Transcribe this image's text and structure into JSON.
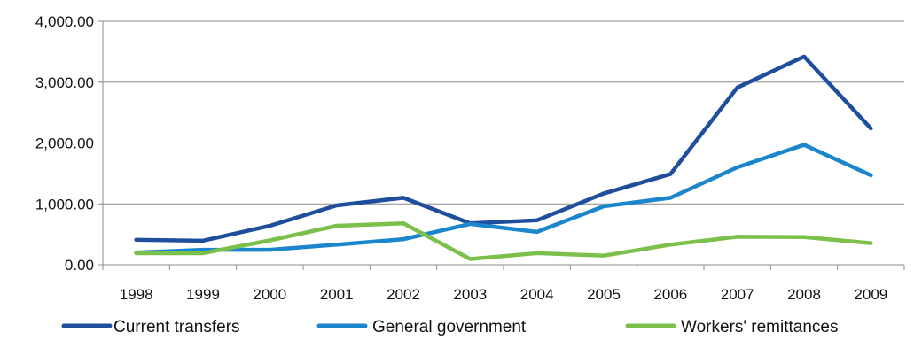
{
  "chart_data": {
    "type": "line",
    "categories": [
      "1998",
      "1999",
      "2000",
      "2001",
      "2002",
      "2003",
      "2004",
      "2005",
      "2006",
      "2007",
      "2008",
      "2009"
    ],
    "y_ticks": [
      "0.00",
      "1,000.00",
      "2,000.00",
      "3,000.00",
      "4,000.00"
    ],
    "ylim": [
      0,
      4000
    ],
    "grid": "horizontal",
    "legend_position": "bottom",
    "series": [
      {
        "name": "Current transfers",
        "color": "#1f4e9c",
        "values": [
          410,
          395,
          640,
          975,
          1100,
          680,
          730,
          1170,
          1490,
          2910,
          3420,
          2240
        ]
      },
      {
        "name": "General government",
        "color": "#1b86cc",
        "values": [
          200,
          245,
          245,
          330,
          420,
          670,
          540,
          960,
          1100,
          1600,
          1970,
          1470
        ]
      },
      {
        "name": "Workers' remittances",
        "color": "#7ac04a",
        "values": [
          190,
          190,
          400,
          640,
          680,
          95,
          190,
          150,
          330,
          460,
          455,
          355
        ]
      }
    ]
  }
}
